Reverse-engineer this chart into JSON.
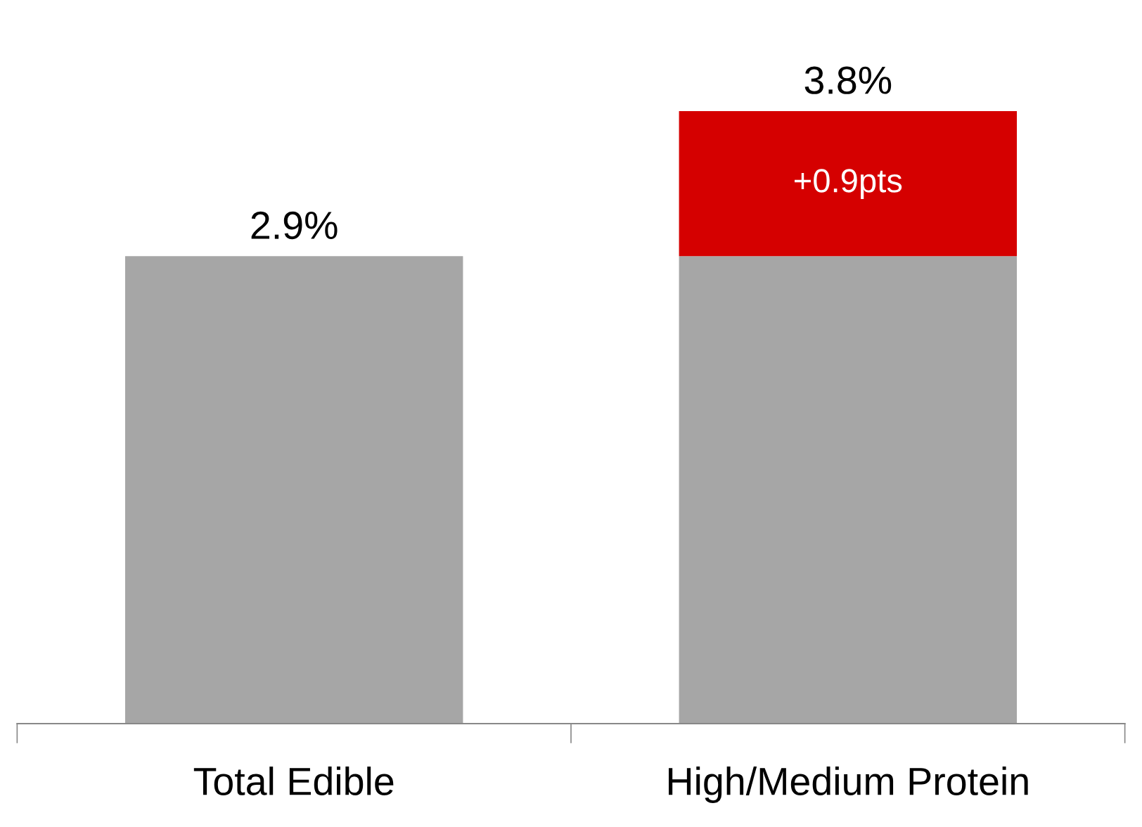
{
  "chart_data": {
    "type": "bar",
    "stacked": true,
    "categories": [
      "Total Edible",
      "High/Medium Protein"
    ],
    "series": [
      {
        "color": "#a6a6a6",
        "values": [
          2.9,
          2.9
        ]
      },
      {
        "color": "#d50000",
        "values": [
          null,
          0.9
        ],
        "value_labels": [
          null,
          "+0.9pts"
        ]
      }
    ],
    "totals": [
      "2.9%",
      "3.8%"
    ],
    "grid": false,
    "legend": false
  }
}
